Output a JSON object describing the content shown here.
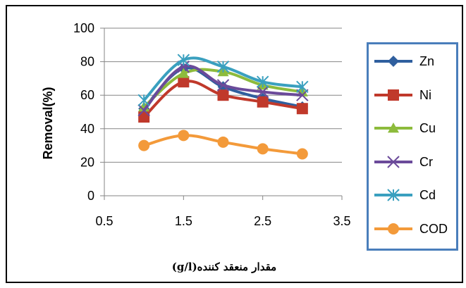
{
  "chart_data": {
    "type": "line",
    "title": "",
    "xlabel": "مقدار منعقد کننده(g/l)",
    "ylabel": "Removal(%)",
    "xlim": [
      0.5,
      3.5
    ],
    "ylim": [
      0,
      100
    ],
    "xticks": [
      "0.5",
      "1.5",
      "2.5",
      "3.5"
    ],
    "yticks": [
      "0",
      "20",
      "40",
      "60",
      "80",
      "100"
    ],
    "grid": "horizontal",
    "legend_position": "right",
    "x": [
      1,
      1.5,
      2,
      2.5,
      3
    ],
    "series": [
      {
        "name": "Zn",
        "values": [
          52,
          76,
          65,
          58,
          53
        ],
        "color": "#2f5f9e",
        "marker": "diamond"
      },
      {
        "name": "Ni",
        "values": [
          47,
          68,
          60,
          56,
          52
        ],
        "color": "#c0392b",
        "marker": "square"
      },
      {
        "name": "Cu",
        "values": [
          53,
          73,
          74,
          66,
          62
        ],
        "color": "#8dbb3c",
        "marker": "triangle"
      },
      {
        "name": "Cr",
        "values": [
          51,
          77,
          66,
          62,
          60
        ],
        "color": "#6b4a9a",
        "marker": "x"
      },
      {
        "name": "Cd",
        "values": [
          57,
          81,
          77,
          68,
          65
        ],
        "color": "#3aa0bf",
        "marker": "star"
      },
      {
        "name": "COD",
        "values": [
          30,
          36,
          32,
          28,
          25
        ],
        "color": "#f39a3a",
        "marker": "circle"
      }
    ]
  }
}
